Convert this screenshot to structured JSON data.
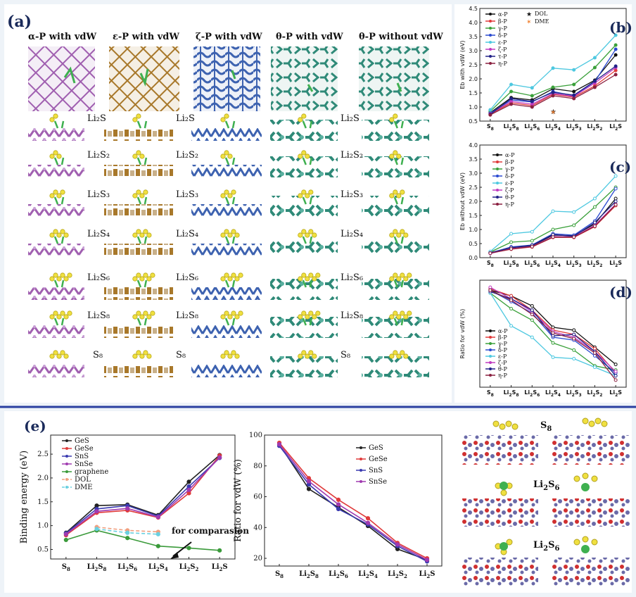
{
  "panel_labels": {
    "a": "(a)",
    "b": "(b)",
    "c": "(c)",
    "d": "(d)",
    "e": "(e)"
  },
  "structure_titles": [
    "α-P with vdW",
    "ε-P with vdW",
    "ζ-P with vdW",
    "θ-P with vdW",
    "θ-P without vdW"
  ],
  "species_labels": {
    "li2s": "Li₂S",
    "li2s2": "Li₂S₂",
    "li2s3": "Li₂S₃",
    "li2s4": "Li₂S₄",
    "li2s6": "Li₂S₆",
    "li2s8": "Li₂S₈",
    "s8": "S₈"
  },
  "colors": {
    "alpha": "#a05fb0",
    "epsilon": "#a8782a",
    "zeta": "#3d62b0",
    "theta": "#2f8a78",
    "sulfur": "#f0e040",
    "lithium": "#3fb050",
    "divider": "#2a3fa0",
    "ges_red": "#d02a2a",
    "ges_blue": "#6a6aa8"
  },
  "chart_data": [
    {
      "id": "b",
      "type": "line",
      "ylabel": "Eb with vdW (eV)",
      "categories": [
        "S8",
        "Li2S8",
        "Li2S6",
        "Li2S4",
        "Li2S3",
        "Li2S2",
        "Li2S"
      ],
      "ylim": [
        0.5,
        4.5
      ],
      "yticks": [
        "0.5",
        "1.0",
        "1.5",
        "2.0",
        "2.5",
        "3.0",
        "3.5",
        "4.0",
        "4.5"
      ],
      "series": [
        {
          "name": "α-P",
          "color": "#111111",
          "values": [
            0.8,
            1.33,
            1.25,
            1.65,
            1.55,
            1.95,
            2.85
          ]
        },
        {
          "name": "β-P",
          "color": "#e03a3a",
          "values": [
            0.75,
            1.15,
            1.05,
            1.45,
            1.35,
            1.75,
            2.3
          ]
        },
        {
          "name": "γ-P",
          "color": "#3aa03a",
          "values": [
            0.85,
            1.55,
            1.4,
            1.7,
            1.8,
            2.4,
            3.2
          ]
        },
        {
          "name": "δ-P",
          "color": "#2a4ad0",
          "values": [
            0.78,
            1.25,
            1.18,
            1.55,
            1.4,
            1.9,
            3.05
          ]
        },
        {
          "name": "ε-P",
          "color": "#4ec8e0",
          "values": [
            0.9,
            1.8,
            1.68,
            2.38,
            2.32,
            2.75,
            3.55
          ]
        },
        {
          "name": "ζ-P",
          "color": "#c03ac0",
          "values": [
            0.76,
            1.2,
            1.1,
            1.48,
            1.38,
            1.85,
            2.4
          ]
        },
        {
          "name": "τ-P",
          "color": "#222288",
          "values": [
            0.74,
            1.3,
            1.2,
            1.52,
            1.42,
            1.92,
            2.45
          ]
        },
        {
          "name": "η-P",
          "color": "#8a2040",
          "values": [
            0.72,
            1.1,
            1.0,
            1.4,
            1.3,
            1.7,
            2.15
          ]
        }
      ],
      "markers": [
        {
          "name": "DOL",
          "x": "Li2S4",
          "y": 0.85
        },
        {
          "name": "DME",
          "x": "Li2S4",
          "y": 0.82
        }
      ]
    },
    {
      "id": "c",
      "type": "line",
      "ylabel": "Eb without vdW (eV)",
      "categories": [
        "S8",
        "Li2S8",
        "Li2S6",
        "Li2S4",
        "Li2S3",
        "Li2S2",
        "Li2S"
      ],
      "xticklabels": [
        "S",
        "Li S",
        "Li S",
        "Li S",
        "Li S",
        "Li S",
        "Li S"
      ],
      "ylim": [
        0.0,
        4.0
      ],
      "yticks": [
        "0.0",
        "0.5",
        "1.0",
        "1.5",
        "2.0",
        "2.5",
        "3.0",
        "3.5",
        "4.0"
      ],
      "series": [
        {
          "name": "α-P",
          "color": "#111111",
          "values": [
            0.18,
            0.35,
            0.42,
            0.8,
            0.78,
            1.2,
            2.1
          ]
        },
        {
          "name": "β-P",
          "color": "#e03a3a",
          "values": [
            0.16,
            0.3,
            0.38,
            0.72,
            0.72,
            1.1,
            1.85
          ]
        },
        {
          "name": "γ-P",
          "color": "#3aa03a",
          "values": [
            0.2,
            0.55,
            0.6,
            1.0,
            1.15,
            1.8,
            2.5
          ]
        },
        {
          "name": "δ-P",
          "color": "#2a4ad0",
          "values": [
            0.17,
            0.38,
            0.45,
            0.85,
            0.8,
            1.3,
            2.45
          ]
        },
        {
          "name": "ε-P",
          "color": "#4ec8e0",
          "values": [
            0.22,
            0.85,
            0.92,
            1.65,
            1.62,
            2.1,
            2.9
          ]
        },
        {
          "name": "ζ-P",
          "color": "#c03ac0",
          "values": [
            0.15,
            0.32,
            0.4,
            0.75,
            0.74,
            1.15,
            1.9
          ]
        },
        {
          "name": "θ-P",
          "color": "#222288",
          "values": [
            0.17,
            0.36,
            0.44,
            0.82,
            0.76,
            1.25,
            2.0
          ]
        },
        {
          "name": "η-P",
          "color": "#8a2040",
          "values": [
            0.16,
            0.31,
            0.39,
            0.73,
            0.73,
            1.12,
            1.88
          ]
        }
      ]
    },
    {
      "id": "d",
      "type": "line",
      "ylabel": "Ratio for vdW (%)",
      "categories": [
        "S8",
        "Li2S8",
        "Li2S6",
        "Li2S4",
        "Li2S3",
        "Li2S2",
        "Li2S"
      ],
      "ylim": [
        0.1,
        0.85
      ],
      "series": [
        {
          "name": "α-P",
          "color": "#111111",
          "values": [
            0.78,
            0.74,
            0.67,
            0.52,
            0.5,
            0.38,
            0.26
          ]
        },
        {
          "name": "β-P",
          "color": "#e03a3a",
          "values": [
            0.79,
            0.74,
            0.64,
            0.5,
            0.47,
            0.37,
            0.2
          ]
        },
        {
          "name": "γ-P",
          "color": "#3aa03a",
          "values": [
            0.76,
            0.65,
            0.57,
            0.41,
            0.36,
            0.25,
            0.22
          ]
        },
        {
          "name": "δ-P",
          "color": "#2a4ad0",
          "values": [
            0.78,
            0.7,
            0.62,
            0.45,
            0.43,
            0.32,
            0.2
          ]
        },
        {
          "name": "ε-P",
          "color": "#4ec8e0",
          "values": [
            0.76,
            0.53,
            0.45,
            0.31,
            0.3,
            0.24,
            0.18
          ]
        },
        {
          "name": "ζ-P",
          "color": "#c03ac0",
          "values": [
            0.8,
            0.72,
            0.63,
            0.49,
            0.45,
            0.35,
            0.21
          ]
        },
        {
          "name": "θ-P",
          "color": "#222288",
          "values": [
            0.77,
            0.72,
            0.64,
            0.46,
            0.47,
            0.35,
            0.18
          ]
        },
        {
          "name": "η-P",
          "color": "#8a2040",
          "values": [
            0.78,
            0.71,
            0.61,
            0.48,
            0.44,
            0.34,
            0.15
          ]
        }
      ]
    },
    {
      "id": "e1",
      "type": "line",
      "ylabel": "Binding energy (eV)",
      "categories": [
        "S8",
        "Li2S8",
        "Li2S6",
        "Li2S4",
        "Li2S2",
        "Li2S"
      ],
      "ylim": [
        0.3,
        2.9
      ],
      "yticks": [
        "0.5",
        "1.0",
        "1.5",
        "2.0",
        "2.5"
      ],
      "series": [
        {
          "name": "GeS",
          "color": "#222222",
          "values": [
            0.85,
            1.42,
            1.44,
            1.22,
            1.92,
            2.48
          ]
        },
        {
          "name": "GeSe",
          "color": "#e03a3a",
          "values": [
            0.8,
            1.27,
            1.32,
            1.17,
            1.68,
            2.47
          ]
        },
        {
          "name": "SnS",
          "color": "#3a3ab0",
          "values": [
            0.84,
            1.35,
            1.42,
            1.2,
            1.82,
            2.42
          ]
        },
        {
          "name": "SnSe",
          "color": "#a03ab0",
          "values": [
            0.82,
            1.3,
            1.36,
            1.18,
            1.75,
            2.43
          ]
        },
        {
          "name": "graphene",
          "color": "#3a9a3a",
          "values": [
            0.7,
            0.9,
            0.74,
            0.57,
            0.53,
            0.48
          ]
        },
        {
          "name": "DOL",
          "color": "#f0a080",
          "dashed": true,
          "values": [
            null,
            0.97,
            0.9,
            0.87,
            null,
            null
          ]
        },
        {
          "name": "DME",
          "color": "#6ad0e0",
          "dashed": true,
          "values": [
            null,
            0.93,
            0.85,
            0.82,
            null,
            null
          ]
        }
      ],
      "annotation": "for comparasion"
    },
    {
      "id": "e2",
      "type": "line",
      "ylabel": "Ratio for vdW (%)",
      "categories": [
        "S8",
        "Li2S8",
        "Li2S6",
        "Li2S4",
        "Li2S2",
        "Li2S"
      ],
      "ylim": [
        15,
        100
      ],
      "yticks": [
        "20",
        "40",
        "60",
        "80",
        "100"
      ],
      "series": [
        {
          "name": "GeS",
          "color": "#222222",
          "values": [
            94,
            65,
            53,
            41,
            26,
            19
          ]
        },
        {
          "name": "GeSe",
          "color": "#e03a3a",
          "values": [
            95,
            72,
            58,
            46,
            30,
            20
          ]
        },
        {
          "name": "SnS",
          "color": "#3a3ab0",
          "values": [
            93,
            68,
            52,
            42,
            28,
            18
          ]
        },
        {
          "name": "SnSe",
          "color": "#a03ab0",
          "values": [
            94,
            70,
            55,
            43,
            29,
            19
          ]
        }
      ]
    }
  ],
  "tick_text": {
    "s8": "S",
    "sub8": "8",
    "li": "Li",
    "li2": "Li",
    "sub2": "2",
    "sub4": "4",
    "sub6": "6",
    "sub3": "3",
    "s": "S"
  }
}
